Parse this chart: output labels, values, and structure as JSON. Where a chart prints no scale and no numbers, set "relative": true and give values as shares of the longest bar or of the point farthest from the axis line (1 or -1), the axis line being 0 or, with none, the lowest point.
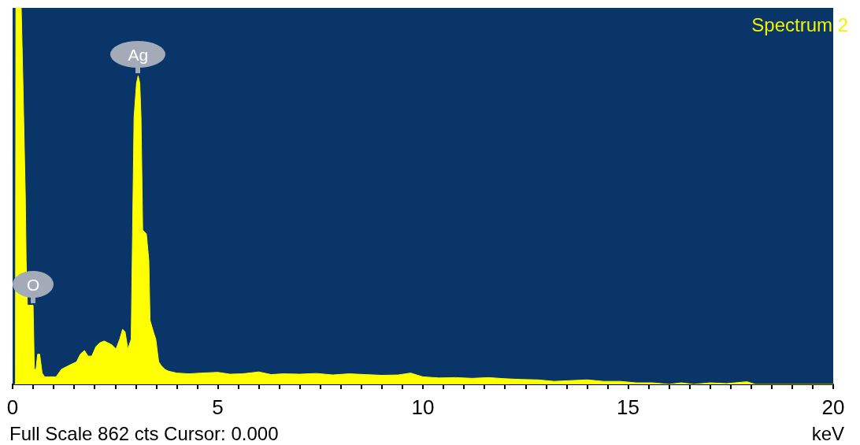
{
  "chart_data": {
    "type": "area",
    "title": "Spectrum 2",
    "xlabel": "keV",
    "relative": true,
    "color": "#ffff00",
    "marker": "none",
    "annotations": [
      "Full Scale 862 cts Cursor: 0.000",
      {
        "text": "Ag",
        "x": 3.06,
        "y": 0.82
      },
      {
        "text": "O",
        "x": 0.5,
        "y": 0.21
      }
    ],
    "x": [
      0.03,
      0.07,
      0.08,
      0.21,
      0.25,
      0.31,
      0.33,
      0.36,
      0.46,
      0.5,
      0.53,
      0.57,
      0.61,
      0.66,
      0.72,
      0.78,
      0.96,
      1.06,
      1.19,
      1.37,
      1.56,
      1.65,
      1.75,
      1.84,
      1.93,
      2.03,
      2.12,
      2.23,
      2.33,
      2.42,
      2.52,
      2.61,
      2.68,
      2.74,
      2.81,
      2.89,
      2.96,
      3.02,
      3.06,
      3.1,
      3.13,
      3.17,
      3.26,
      3.32,
      3.35,
      3.43,
      3.49,
      3.56,
      3.62,
      3.71,
      3.8,
      4.0,
      4.3,
      4.6,
      5.0,
      5.3,
      5.6,
      6.0,
      6.3,
      6.6,
      7.0,
      7.4,
      7.8,
      8.2,
      8.6,
      9.0,
      9.4,
      9.7,
      10.0,
      10.4,
      10.8,
      11.2,
      11.6,
      12.0,
      12.4,
      12.8,
      13.2,
      13.6,
      14.0,
      14.4,
      14.8,
      15.2,
      15.6,
      16.0,
      16.3,
      16.6,
      17.0,
      17.4,
      17.9,
      18.1,
      20.0
    ],
    "values": [
      0,
      0,
      1,
      1,
      0.81,
      0.5,
      0.33,
      0.21,
      0.21,
      0.21,
      0.04,
      0.04,
      0.08,
      0.08,
      0.03,
      0.02,
      0.02,
      0.02,
      0.04,
      0.05,
      0.06,
      0.08,
      0.09,
      0.075,
      0.075,
      0.1,
      0.11,
      0.115,
      0.11,
      0.105,
      0.094,
      0.12,
      0.146,
      0.14,
      0.094,
      0.12,
      0.71,
      0.8,
      0.82,
      0.8,
      0.71,
      0.41,
      0.4,
      0.33,
      0.17,
      0.14,
      0.12,
      0.06,
      0.05,
      0.04,
      0.035,
      0.03,
      0.028,
      0.03,
      0.032,
      0.027,
      0.028,
      0.033,
      0.026,
      0.028,
      0.027,
      0.029,
      0.025,
      0.028,
      0.026,
      0.024,
      0.025,
      0.03,
      0.02,
      0.017,
      0.018,
      0.016,
      0.018,
      0.015,
      0.013,
      0.012,
      0.008,
      0.01,
      0.012,
      0.008,
      0.008,
      0.004,
      0.004,
      0,
      0.004,
      0,
      0.004,
      0.002,
      0.007,
      0,
      0
    ],
    "xlim": [
      0,
      20
    ],
    "xticks": [
      0,
      {
        "value": 0.5,
        "label": null
      },
      {
        "value": 1,
        "label": null
      },
      {
        "value": 1.5,
        "label": null
      },
      {
        "value": 2,
        "label": null
      },
      {
        "value": 2.5,
        "label": null
      },
      {
        "value": 3,
        "label": null
      },
      {
        "value": 3.5,
        "label": null
      },
      {
        "value": 4,
        "label": null
      },
      {
        "value": 4.5,
        "label": null
      },
      5,
      {
        "value": 5.5,
        "label": null
      },
      {
        "value": 6,
        "label": null
      },
      {
        "value": 6.5,
        "label": null
      },
      {
        "value": 7,
        "label": null
      },
      {
        "value": 7.5,
        "label": null
      },
      {
        "value": 8,
        "label": null
      },
      {
        "value": 8.5,
        "label": null
      },
      {
        "value": 9,
        "label": null
      },
      {
        "value": 9.5,
        "label": null
      },
      10,
      {
        "value": 10.5,
        "label": null
      },
      {
        "value": 11,
        "label": null
      },
      {
        "value": 11.5,
        "label": null
      },
      {
        "value": 12,
        "label": null
      },
      {
        "value": 12.5,
        "label": null
      },
      {
        "value": 13,
        "label": null
      },
      {
        "value": 13.5,
        "label": null
      },
      {
        "value": 14,
        "label": null
      },
      {
        "value": 14.5,
        "label": null
      },
      15,
      {
        "value": 15.5,
        "label": null
      },
      {
        "value": 16,
        "label": null
      },
      {
        "value": 16.5,
        "label": null
      },
      {
        "value": 17,
        "label": null
      },
      {
        "value": 17.5,
        "label": null
      },
      {
        "value": 18,
        "label": null
      },
      {
        "value": 18.5,
        "label": null
      },
      {
        "value": 19,
        "label": null
      },
      {
        "value": 19.5,
        "label": null
      },
      20
    ],
    "grid": false
  }
}
